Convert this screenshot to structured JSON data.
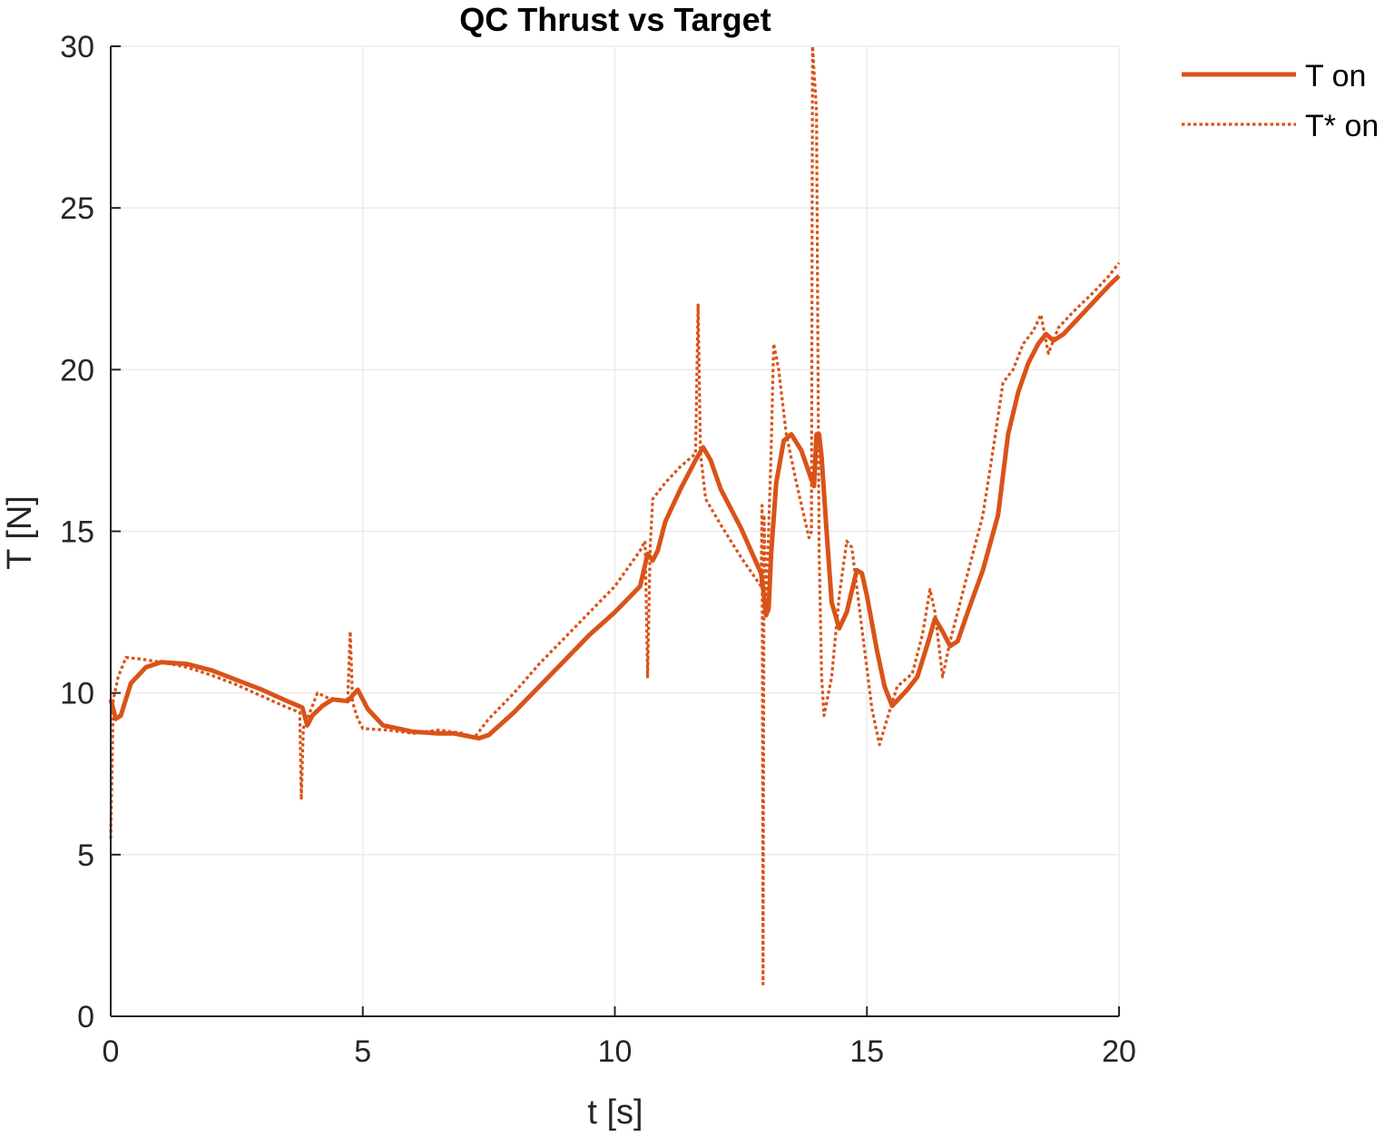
{
  "chart_data": {
    "type": "line",
    "title": "QC Thrust vs Target",
    "xlabel": "t [s]",
    "ylabel": "T [N]",
    "xlim": [
      0,
      20
    ],
    "ylim": [
      0,
      30
    ],
    "xticks": [
      0,
      5,
      10,
      15,
      20
    ],
    "yticks": [
      0,
      5,
      10,
      15,
      20,
      25,
      30
    ],
    "xtick_labels": [
      "0",
      "5",
      "10",
      "15",
      "20"
    ],
    "ytick_labels": [
      "0",
      "5",
      "10",
      "15",
      "20",
      "25",
      "30"
    ],
    "grid": true,
    "legend_position": "top-right outside",
    "series": [
      {
        "name": "T on",
        "style": "solid",
        "color": "#D95319",
        "points": [
          [
            0.0,
            9.8
          ],
          [
            0.1,
            9.2
          ],
          [
            0.2,
            9.3
          ],
          [
            0.4,
            10.3
          ],
          [
            0.7,
            10.8
          ],
          [
            1.0,
            10.95
          ],
          [
            1.5,
            10.9
          ],
          [
            2.0,
            10.7
          ],
          [
            2.5,
            10.4
          ],
          [
            3.0,
            10.1
          ],
          [
            3.5,
            9.75
          ],
          [
            3.8,
            9.55
          ],
          [
            3.9,
            9.0
          ],
          [
            4.0,
            9.3
          ],
          [
            4.2,
            9.6
          ],
          [
            4.4,
            9.8
          ],
          [
            4.7,
            9.75
          ],
          [
            4.9,
            10.1
          ],
          [
            5.1,
            9.5
          ],
          [
            5.4,
            9.0
          ],
          [
            6.0,
            8.8
          ],
          [
            6.5,
            8.75
          ],
          [
            6.8,
            8.75
          ],
          [
            7.3,
            8.6
          ],
          [
            7.5,
            8.7
          ],
          [
            8.0,
            9.4
          ],
          [
            8.5,
            10.2
          ],
          [
            9.0,
            11.0
          ],
          [
            9.5,
            11.8
          ],
          [
            10.0,
            12.5
          ],
          [
            10.5,
            13.3
          ],
          [
            10.65,
            14.3
          ],
          [
            10.75,
            14.1
          ],
          [
            10.85,
            14.4
          ],
          [
            11.0,
            15.3
          ],
          [
            11.3,
            16.3
          ],
          [
            11.6,
            17.2
          ],
          [
            11.75,
            17.6
          ],
          [
            11.9,
            17.2
          ],
          [
            12.1,
            16.3
          ],
          [
            12.5,
            15.1
          ],
          [
            12.9,
            13.7
          ],
          [
            12.95,
            13.1
          ],
          [
            13.0,
            12.4
          ],
          [
            13.05,
            12.6
          ],
          [
            13.1,
            14.3
          ],
          [
            13.2,
            16.5
          ],
          [
            13.35,
            17.8
          ],
          [
            13.5,
            18.0
          ],
          [
            13.7,
            17.5
          ],
          [
            13.9,
            16.6
          ],
          [
            13.95,
            16.4
          ],
          [
            14.0,
            18.0
          ],
          [
            14.05,
            18.0
          ],
          [
            14.1,
            17.3
          ],
          [
            14.2,
            15.0
          ],
          [
            14.3,
            12.8
          ],
          [
            14.45,
            12.0
          ],
          [
            14.6,
            12.5
          ],
          [
            14.8,
            13.8
          ],
          [
            14.9,
            13.7
          ],
          [
            15.0,
            13.0
          ],
          [
            15.2,
            11.3
          ],
          [
            15.35,
            10.2
          ],
          [
            15.5,
            9.6
          ],
          [
            15.8,
            10.1
          ],
          [
            16.0,
            10.5
          ],
          [
            16.2,
            11.5
          ],
          [
            16.35,
            12.3
          ],
          [
            16.5,
            11.9
          ],
          [
            16.65,
            11.45
          ],
          [
            16.8,
            11.6
          ],
          [
            17.0,
            12.5
          ],
          [
            17.3,
            13.8
          ],
          [
            17.6,
            15.5
          ],
          [
            17.8,
            18.0
          ],
          [
            18.0,
            19.3
          ],
          [
            18.2,
            20.2
          ],
          [
            18.4,
            20.8
          ],
          [
            18.55,
            21.1
          ],
          [
            18.7,
            20.9
          ],
          [
            18.9,
            21.1
          ],
          [
            19.2,
            21.6
          ],
          [
            19.5,
            22.1
          ],
          [
            19.8,
            22.6
          ],
          [
            20.0,
            22.9
          ]
        ]
      },
      {
        "name": "T* on",
        "style": "dotted",
        "color": "#D95319",
        "points": [
          [
            0.0,
            5.5
          ],
          [
            0.05,
            9.8
          ],
          [
            0.15,
            10.5
          ],
          [
            0.3,
            11.1
          ],
          [
            0.6,
            11.05
          ],
          [
            1.0,
            10.95
          ],
          [
            1.5,
            10.8
          ],
          [
            2.0,
            10.55
          ],
          [
            2.5,
            10.25
          ],
          [
            3.0,
            9.9
          ],
          [
            3.5,
            9.55
          ],
          [
            3.75,
            9.4
          ],
          [
            3.78,
            6.7
          ],
          [
            3.82,
            8.9
          ],
          [
            3.95,
            9.4
          ],
          [
            4.1,
            10.0
          ],
          [
            4.3,
            9.85
          ],
          [
            4.7,
            9.75
          ],
          [
            4.75,
            11.9
          ],
          [
            4.8,
            9.7
          ],
          [
            4.9,
            9.2
          ],
          [
            5.0,
            8.9
          ],
          [
            5.5,
            8.85
          ],
          [
            6.0,
            8.75
          ],
          [
            6.5,
            8.85
          ],
          [
            7.0,
            8.75
          ],
          [
            7.2,
            8.6
          ],
          [
            7.5,
            9.2
          ],
          [
            8.0,
            10.0
          ],
          [
            8.5,
            10.9
          ],
          [
            9.0,
            11.7
          ],
          [
            9.5,
            12.5
          ],
          [
            10.0,
            13.3
          ],
          [
            10.5,
            14.4
          ],
          [
            10.6,
            14.7
          ],
          [
            10.65,
            10.5
          ],
          [
            10.7,
            14.5
          ],
          [
            10.75,
            16.0
          ],
          [
            11.0,
            16.5
          ],
          [
            11.3,
            17.0
          ],
          [
            11.6,
            17.4
          ],
          [
            11.65,
            22.0
          ],
          [
            11.7,
            17.4
          ],
          [
            11.8,
            16.0
          ],
          [
            12.1,
            15.2
          ],
          [
            12.5,
            14.2
          ],
          [
            12.9,
            13.3
          ],
          [
            12.92,
            15.8
          ],
          [
            12.94,
            1.0
          ],
          [
            12.96,
            15.5
          ],
          [
            13.0,
            12.5
          ],
          [
            13.1,
            17.5
          ],
          [
            13.15,
            20.8
          ],
          [
            13.25,
            20.0
          ],
          [
            13.4,
            18.0
          ],
          [
            13.6,
            16.5
          ],
          [
            13.85,
            14.8
          ],
          [
            13.9,
            15.0
          ],
          [
            13.92,
            30.0
          ],
          [
            14.0,
            28.0
          ],
          [
            14.05,
            14.5
          ],
          [
            14.1,
            10.5
          ],
          [
            14.15,
            9.3
          ],
          [
            14.3,
            10.5
          ],
          [
            14.45,
            13.0
          ],
          [
            14.6,
            14.7
          ],
          [
            14.7,
            14.5
          ],
          [
            14.9,
            12.0
          ],
          [
            15.1,
            9.5
          ],
          [
            15.25,
            8.4
          ],
          [
            15.4,
            9.2
          ],
          [
            15.6,
            10.2
          ],
          [
            15.9,
            10.6
          ],
          [
            16.1,
            11.8
          ],
          [
            16.25,
            13.2
          ],
          [
            16.35,
            12.5
          ],
          [
            16.5,
            10.5
          ],
          [
            16.65,
            11.6
          ],
          [
            16.8,
            12.5
          ],
          [
            17.0,
            13.7
          ],
          [
            17.3,
            15.5
          ],
          [
            17.5,
            17.5
          ],
          [
            17.7,
            19.6
          ],
          [
            17.9,
            20.0
          ],
          [
            18.1,
            20.8
          ],
          [
            18.3,
            21.2
          ],
          [
            18.45,
            21.7
          ],
          [
            18.6,
            20.5
          ],
          [
            18.8,
            21.3
          ],
          [
            19.1,
            21.8
          ],
          [
            19.5,
            22.4
          ],
          [
            19.8,
            22.9
          ],
          [
            20.0,
            23.3
          ]
        ]
      }
    ]
  }
}
